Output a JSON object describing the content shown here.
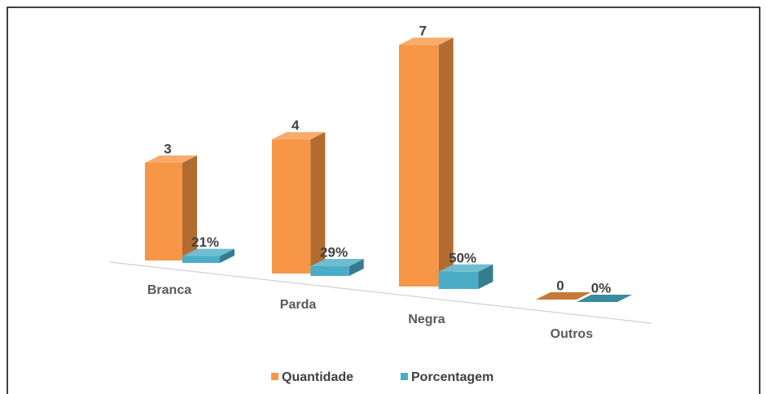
{
  "chart_data": {
    "type": "bar3d",
    "categories": [
      "Branca",
      "Parda",
      "Negra",
      "Outros"
    ],
    "series": [
      {
        "name": "Quantidade",
        "color": "#f79646",
        "values": [
          3,
          4,
          7,
          0
        ]
      },
      {
        "name": "Porcentagem",
        "color": "#4bacc6",
        "axis": "y2",
        "values": [
          21,
          29,
          50,
          0
        ],
        "value_labels": [
          "21%",
          "29%",
          "50%",
          "0%"
        ]
      }
    ],
    "ylim": [
      0,
      7.5
    ],
    "y2lim": [
      0,
      750
    ],
    "legend": "bottom"
  }
}
